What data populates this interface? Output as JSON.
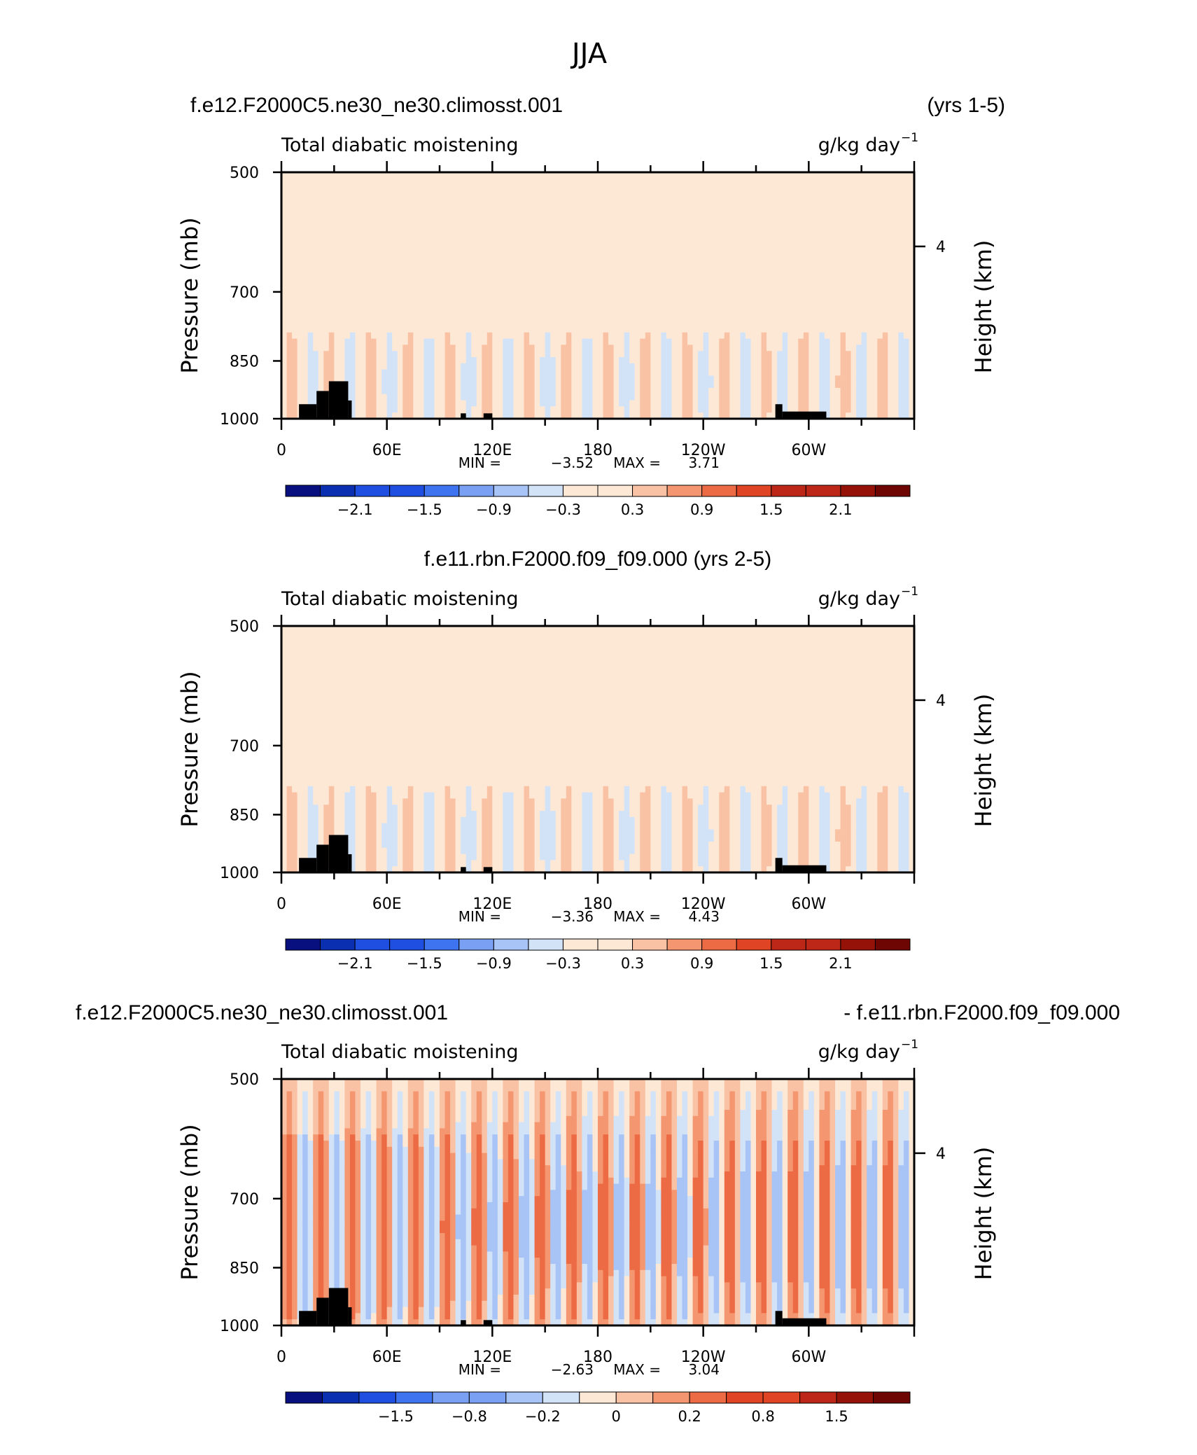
{
  "figure": {
    "title": "JJA",
    "colors": {
      "land": "#000000",
      "palette": [
        "#08107f",
        "#0a2fb0",
        "#1e4fe0",
        "#3f74f0",
        "#7aa0f4",
        "#a8c4f6",
        "#d2e3f8",
        "#fde8d6",
        "#fac2a4",
        "#f49770",
        "#ec6b44",
        "#df4424",
        "#bd2717",
        "#951208",
        "#6e0704"
      ]
    }
  },
  "chart_data": [
    {
      "type": "heatmap",
      "case_left": "f.e12.F2000C5.ne30_ne30.climosst.001",
      "case_right": "(yrs 1-5)",
      "left_string": "Total diabatic moistening",
      "right_string": "g/kg day",
      "right_string_sup": "−1",
      "xlabel": "",
      "ylabel": "Pressure  (mb)",
      "ylabel_right": "Height  (km)",
      "x_ticks": [
        "0",
        "60E",
        "120E",
        "180",
        "120W",
        "60W"
      ],
      "y_ticks": [
        "500",
        "700",
        "850",
        "1000"
      ],
      "y_ticks_right": [
        "4"
      ],
      "ylim": [
        1000,
        500
      ],
      "min_label": "MIN =",
      "min_value": "−3.52",
      "max_label": "MAX =",
      "max_value": "3.71",
      "colorbar_labels": [
        "−2.1",
        "−1.5",
        "−0.9",
        "−0.3",
        "0.3",
        "0.9",
        "1.5",
        "2.1"
      ],
      "colorbar_levels": [
        -2.4,
        -2.1,
        -1.8,
        -1.5,
        -1.2,
        -0.9,
        -0.6,
        -0.3,
        0,
        0.3,
        0.6,
        0.9,
        1.2,
        1.5,
        1.8,
        2.1,
        2.4
      ]
    },
    {
      "type": "heatmap",
      "case_center": "f.e11.rbn.F2000.f09_f09.000 (yrs 2-5)",
      "left_string": "Total diabatic moistening",
      "right_string": "g/kg day",
      "right_string_sup": "−1",
      "xlabel": "",
      "ylabel": "Pressure  (mb)",
      "ylabel_right": "Height  (km)",
      "x_ticks": [
        "0",
        "60E",
        "120E",
        "180",
        "120W",
        "60W"
      ],
      "y_ticks": [
        "500",
        "700",
        "850",
        "1000"
      ],
      "y_ticks_right": [
        "4"
      ],
      "ylim": [
        1000,
        500
      ],
      "min_label": "MIN =",
      "min_value": "−3.36",
      "max_label": "MAX =",
      "max_value": "4.43",
      "colorbar_labels": [
        "−2.1",
        "−1.5",
        "−0.9",
        "−0.3",
        "0.3",
        "0.9",
        "1.5",
        "2.1"
      ],
      "colorbar_levels": [
        -2.4,
        -2.1,
        -1.8,
        -1.5,
        -1.2,
        -0.9,
        -0.6,
        -0.3,
        0,
        0.3,
        0.6,
        0.9,
        1.2,
        1.5,
        1.8,
        2.1,
        2.4
      ]
    },
    {
      "type": "heatmap",
      "case_left": "f.e12.F2000C5.ne30_ne30.climosst.001",
      "case_right": "- f.e11.rbn.F2000.f09_f09.000",
      "left_string": "Total diabatic moistening",
      "right_string": "g/kg day",
      "right_string_sup": "−1",
      "xlabel": "",
      "ylabel": "Pressure  (mb)",
      "ylabel_right": "Height  (km)",
      "x_ticks": [
        "0",
        "60E",
        "120E",
        "180",
        "120W",
        "60W"
      ],
      "y_ticks": [
        "500",
        "700",
        "850",
        "1000"
      ],
      "y_ticks_right": [
        "4"
      ],
      "ylim": [
        1000,
        500
      ],
      "min_label": "MIN =",
      "min_value": "−2.63",
      "max_label": "MAX =",
      "max_value": "3.04",
      "colorbar_labels": [
        "−1.5",
        "−0.8",
        "−0.2",
        "0",
        "0.2",
        "0.8",
        "1.5"
      ],
      "colorbar_levels": [
        -2.5,
        -2,
        -1.5,
        -1.2,
        -0.8,
        -0.5,
        -0.2,
        -0.1,
        0,
        0.1,
        0.2,
        0.5,
        0.8,
        1.2,
        1.5,
        2
      ]
    }
  ]
}
